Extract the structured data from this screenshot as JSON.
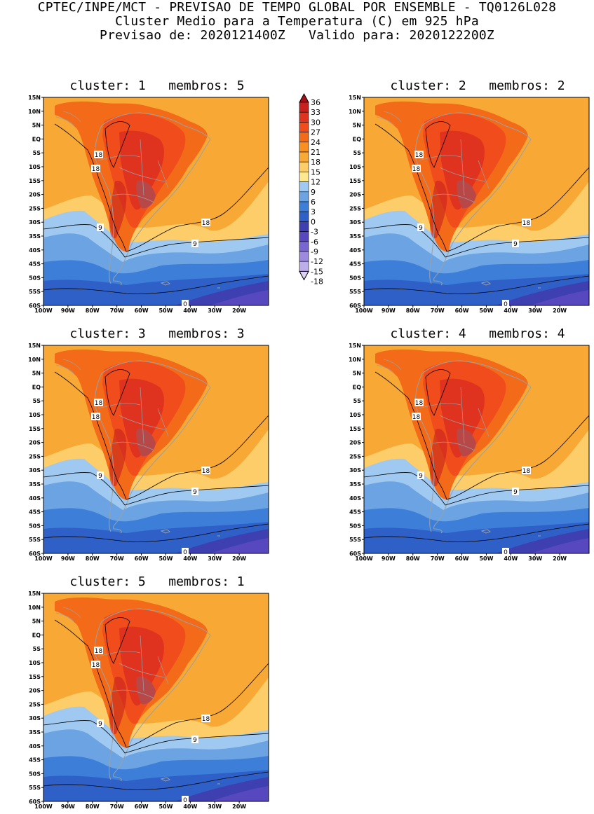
{
  "header": {
    "line1": "CPTEC/INPE/MCT - PREVISAO DE TEMPO GLOBAL POR ENSEMBLE - TQ0126L028",
    "line2": "Cluster Medio para a Temperatura (C) em 925 hPa",
    "line3": "Previsao de: 2020121400Z   Valido para: 2020122200Z"
  },
  "axes": {
    "lat_labels": [
      "15N",
      "10N",
      "5N",
      "EQ",
      "5S",
      "10S",
      "15S",
      "20S",
      "25S",
      "30S",
      "35S",
      "40S",
      "45S",
      "50S",
      "55S",
      "60S"
    ],
    "lon_labels": [
      "100W",
      "90W",
      "80W",
      "70W",
      "60W",
      "50W",
      "40W",
      "30W",
      "20W"
    ]
  },
  "colorbar": {
    "labels": [
      "36",
      "33",
      "30",
      "27",
      "24",
      "21",
      "18",
      "15",
      "12",
      "9",
      "6",
      "3",
      "0",
      "-3",
      "-6",
      "-9",
      "-12",
      "-15",
      "-18"
    ],
    "colors": [
      "#a50f15",
      "#c8201e",
      "#e0331f",
      "#f04c1c",
      "#f36b18",
      "#f88f1e",
      "#f8a834",
      "#fccd68",
      "#fde890",
      "#9fc9f0",
      "#6ba3e3",
      "#3d7fd8",
      "#2e60c8",
      "#3e3fb0",
      "#5848c0",
      "#7a66d0",
      "#9d8ade",
      "#bcaee8",
      "#dcd3f4"
    ]
  },
  "panels": [
    {
      "title": "cluster: 1   membros: 5",
      "labels": {
        "c18a": "18",
        "c18b": "18",
        "c18c": "18",
        "c9a": "9",
        "c9b": "9",
        "c0": "0"
      }
    },
    {
      "title": "cluster: 2   membros: 2",
      "labels": {
        "c18a": "18",
        "c18b": "18",
        "c18c": "18",
        "c9a": "9",
        "c9b": "9",
        "c0": "0"
      }
    },
    {
      "title": "cluster: 3   membros: 3",
      "labels": {
        "c18a": "18",
        "c18b": "18",
        "c18c": "18",
        "c9a": "9",
        "c9b": "9",
        "c0": "0"
      }
    },
    {
      "title": "cluster: 4   membros: 4",
      "labels": {
        "c18a": "18",
        "c18b": "18",
        "c18c": "18",
        "c9a": "9",
        "c9b": "9",
        "c0": "0"
      }
    },
    {
      "title": "cluster: 5   membros: 1",
      "labels": {
        "c18a": "18",
        "c18b": "18",
        "c18c": "18",
        "c9a": "9",
        "c9b": "9",
        "c0": "0"
      }
    }
  ]
}
